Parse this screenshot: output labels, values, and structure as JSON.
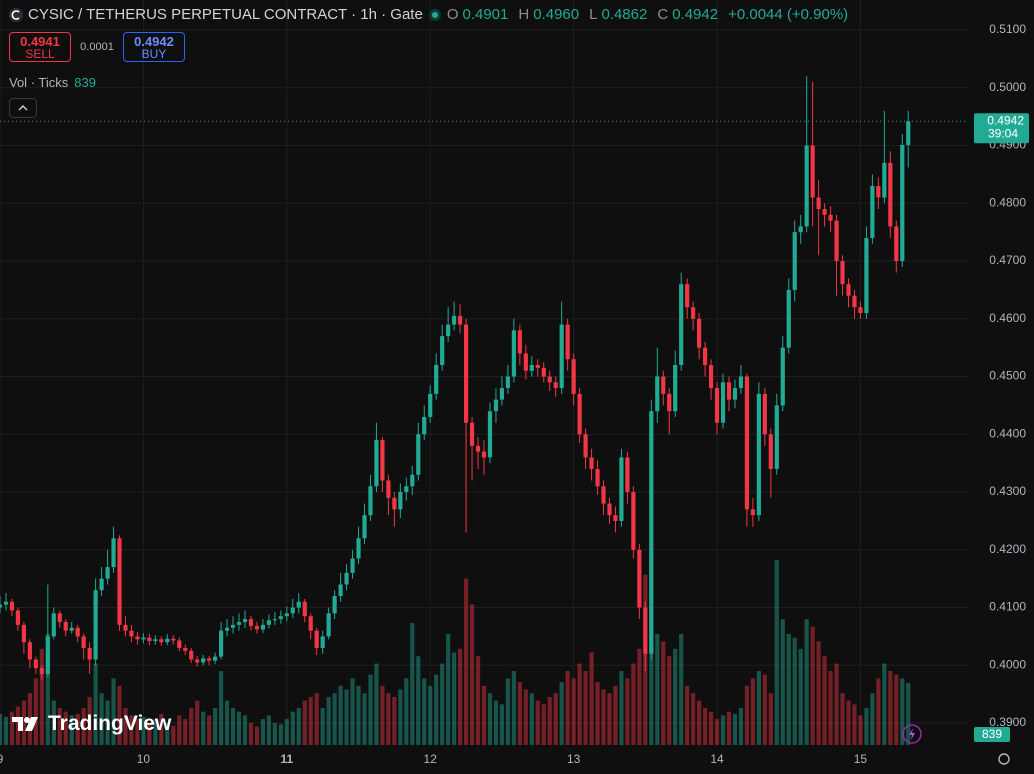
{
  "header": {
    "symbol": "CYSIC / TETHERUS PERPETUAL CONTRACT · 1h · Gate",
    "o_label": "O",
    "o": "0.4901",
    "h_label": "H",
    "h": "0.4960",
    "l_label": "L",
    "l": "0.4862",
    "c_label": "C",
    "c": "0.4942",
    "change": "+0.0044 (+0.90%)"
  },
  "trade": {
    "sell_price": "0.4941",
    "sell_label": "SELL",
    "spread": "0.0001",
    "buy_price": "0.4942",
    "buy_label": "BUY"
  },
  "volume_legend": {
    "label": "Vol · Ticks",
    "value": "839"
  },
  "price_tag": {
    "price": "0.4942",
    "countdown": "39:04"
  },
  "branding": "TradingView",
  "chart_data": {
    "type": "candlestick",
    "up_color": "#22ab94",
    "down_color": "#f23645",
    "grid": true,
    "xlim": [
      0,
      162
    ],
    "ylim": [
      0.3862,
      0.5152
    ],
    "xticks": [
      {
        "value": 0,
        "label": "9"
      },
      {
        "value": 24,
        "label": "10"
      },
      {
        "value": 48,
        "label": "11"
      },
      {
        "value": 72,
        "label": "12"
      },
      {
        "value": 96,
        "label": "13"
      },
      {
        "value": 120,
        "label": "14"
      },
      {
        "value": 144,
        "label": "15"
      }
    ],
    "yticks": [
      {
        "value": 0.39,
        "label": "0.3900"
      },
      {
        "value": 0.4,
        "label": "0.4000"
      },
      {
        "value": 0.41,
        "label": "0.4100"
      },
      {
        "value": 0.42,
        "label": "0.4200"
      },
      {
        "value": 0.43,
        "label": "0.4300"
      },
      {
        "value": 0.44,
        "label": "0.4400"
      },
      {
        "value": 0.45,
        "label": "0.4500"
      },
      {
        "value": 0.46,
        "label": "0.4600"
      },
      {
        "value": 0.47,
        "label": "0.4700"
      },
      {
        "value": 0.48,
        "label": "0.4800"
      },
      {
        "value": 0.49,
        "label": "0.4900"
      },
      {
        "value": 0.5,
        "label": "0.5000"
      },
      {
        "value": 0.51,
        "label": "0.5100"
      }
    ],
    "x": [
      0,
      1,
      2,
      3,
      4,
      5,
      6,
      7,
      8,
      9,
      10,
      11,
      12,
      13,
      14,
      15,
      16,
      17,
      18,
      19,
      20,
      21,
      22,
      23,
      24,
      25,
      26,
      27,
      28,
      29,
      30,
      31,
      32,
      33,
      34,
      35,
      36,
      37,
      38,
      39,
      40,
      41,
      42,
      43,
      44,
      45,
      46,
      47,
      48,
      49,
      50,
      51,
      52,
      53,
      54,
      55,
      56,
      57,
      58,
      59,
      60,
      61,
      62,
      63,
      64,
      65,
      66,
      67,
      68,
      69,
      70,
      71,
      72,
      73,
      74,
      75,
      76,
      77,
      78,
      79,
      80,
      81,
      82,
      83,
      84,
      85,
      86,
      87,
      88,
      89,
      90,
      91,
      92,
      93,
      94,
      95,
      96,
      97,
      98,
      99,
      100,
      101,
      102,
      103,
      104,
      105,
      106,
      107,
      108,
      109,
      110,
      111,
      112,
      113,
      114,
      115,
      116,
      117,
      118,
      119,
      120,
      121,
      122,
      123,
      124,
      125,
      126,
      127,
      128,
      129,
      130,
      131,
      132,
      133,
      134,
      135,
      136,
      137,
      138,
      139,
      140,
      141,
      142,
      143,
      144,
      145,
      146,
      147,
      148,
      149,
      150,
      151,
      152
    ],
    "open": [
      0.41,
      0.4105,
      0.411,
      0.4095,
      0.407,
      0.404,
      0.401,
      0.3995,
      0.3985,
      0.405,
      0.409,
      0.4075,
      0.406,
      0.4065,
      0.405,
      0.403,
      0.401,
      0.413,
      0.415,
      0.417,
      0.422,
      0.407,
      0.406,
      0.405,
      0.4045,
      0.4048,
      0.4042,
      0.4045,
      0.404,
      0.4046,
      0.4043,
      0.403,
      0.4025,
      0.401,
      0.4005,
      0.4012,
      0.4008,
      0.4015,
      0.406,
      0.4065,
      0.407,
      0.4075,
      0.408,
      0.4068,
      0.4062,
      0.407,
      0.4078,
      0.408,
      0.4085,
      0.409,
      0.41,
      0.411,
      0.4085,
      0.406,
      0.403,
      0.405,
      0.409,
      0.412,
      0.414,
      0.416,
      0.4185,
      0.422,
      0.426,
      0.431,
      0.439,
      0.432,
      0.429,
      0.427,
      0.43,
      0.431,
      0.433,
      0.44,
      0.443,
      0.447,
      0.452,
      0.457,
      0.459,
      0.4605,
      0.459,
      0.442,
      0.438,
      0.437,
      0.436,
      0.444,
      0.446,
      0.448,
      0.45,
      0.458,
      0.454,
      0.451,
      0.452,
      0.4515,
      0.45,
      0.449,
      0.448,
      0.459,
      0.453,
      0.447,
      0.44,
      0.436,
      0.434,
      0.431,
      0.428,
      0.426,
      0.425,
      0.436,
      0.43,
      0.42,
      0.41,
      0.402,
      0.444,
      0.45,
      0.447,
      0.444,
      0.452,
      0.466,
      0.462,
      0.46,
      0.455,
      0.452,
      0.448,
      0.442,
      0.449,
      0.446,
      0.448,
      0.45,
      0.427,
      0.426,
      0.447,
      0.44,
      0.434,
      0.445,
      0.455,
      0.465,
      0.475,
      0.476,
      0.49,
      0.481,
      0.479,
      0.478,
      0.477,
      0.47,
      0.466,
      0.464,
      0.462,
      0.461,
      0.474,
      0.483,
      0.481,
      0.487,
      0.476,
      0.47,
      0.4901
    ],
    "high": [
      0.412,
      0.4125,
      0.4115,
      0.41,
      0.4075,
      0.4045,
      0.4015,
      0.4,
      0.414,
      0.41,
      0.4095,
      0.408,
      0.4075,
      0.407,
      0.4055,
      0.404,
      0.415,
      0.417,
      0.42,
      0.424,
      0.4225,
      0.4085,
      0.407,
      0.4058,
      0.4056,
      0.4055,
      0.4052,
      0.405,
      0.4054,
      0.4052,
      0.4048,
      0.4036,
      0.403,
      0.4016,
      0.4018,
      0.4016,
      0.4022,
      0.4075,
      0.408,
      0.4085,
      0.409,
      0.4095,
      0.4086,
      0.4075,
      0.408,
      0.4088,
      0.4092,
      0.4095,
      0.4102,
      0.4115,
      0.4125,
      0.4115,
      0.409,
      0.4065,
      0.406,
      0.41,
      0.413,
      0.416,
      0.4175,
      0.42,
      0.424,
      0.428,
      0.433,
      0.442,
      0.4395,
      0.433,
      0.43,
      0.4315,
      0.4325,
      0.4345,
      0.442,
      0.445,
      0.4485,
      0.454,
      0.459,
      0.462,
      0.463,
      0.4625,
      0.46,
      0.443,
      0.4395,
      0.439,
      0.4455,
      0.448,
      0.45,
      0.452,
      0.46,
      0.459,
      0.4555,
      0.4535,
      0.453,
      0.4525,
      0.451,
      0.45,
      0.463,
      0.46,
      0.454,
      0.448,
      0.441,
      0.4375,
      0.4355,
      0.432,
      0.429,
      0.4275,
      0.4375,
      0.437,
      0.431,
      0.421,
      0.411,
      0.446,
      0.455,
      0.451,
      0.448,
      0.4545,
      0.468,
      0.467,
      0.463,
      0.461,
      0.456,
      0.453,
      0.449,
      0.4505,
      0.45,
      0.4495,
      0.452,
      0.4505,
      0.429,
      0.449,
      0.448,
      0.441,
      0.447,
      0.457,
      0.467,
      0.477,
      0.478,
      0.502,
      0.501,
      0.484,
      0.48,
      0.4795,
      0.478,
      0.471,
      0.467,
      0.465,
      0.463,
      0.476,
      0.485,
      0.4845,
      0.496,
      0.489,
      0.477,
      0.492,
      0.496
    ],
    "low": [
      0.409,
      0.4095,
      0.4085,
      0.406,
      0.402,
      0.3995,
      0.3985,
      0.3975,
      0.398,
      0.4045,
      0.4065,
      0.405,
      0.4055,
      0.404,
      0.401,
      0.3985,
      0.4,
      0.412,
      0.414,
      0.416,
      0.406,
      0.405,
      0.404,
      0.4036,
      0.4038,
      0.4035,
      0.4036,
      0.4034,
      0.4035,
      0.4036,
      0.4024,
      0.4018,
      0.4004,
      0.3998,
      0.4,
      0.4,
      0.4002,
      0.401,
      0.405,
      0.4055,
      0.406,
      0.4065,
      0.406,
      0.4055,
      0.4056,
      0.4064,
      0.407,
      0.4072,
      0.4076,
      0.4082,
      0.409,
      0.4075,
      0.4045,
      0.4018,
      0.402,
      0.4045,
      0.408,
      0.411,
      0.413,
      0.415,
      0.4175,
      0.421,
      0.425,
      0.43,
      0.43,
      0.426,
      0.424,
      0.4255,
      0.4285,
      0.4295,
      0.432,
      0.439,
      0.442,
      0.446,
      0.451,
      0.456,
      0.458,
      0.4575,
      0.423,
      0.432,
      0.434,
      0.433,
      0.435,
      0.442,
      0.445,
      0.447,
      0.449,
      0.452,
      0.4495,
      0.45,
      0.45,
      0.449,
      0.4475,
      0.4465,
      0.447,
      0.451,
      0.445,
      0.4385,
      0.434,
      0.432,
      0.4295,
      0.426,
      0.4245,
      0.423,
      0.424,
      0.428,
      0.4185,
      0.408,
      0.399,
      0.401,
      0.442,
      0.445,
      0.44,
      0.443,
      0.451,
      0.46,
      0.458,
      0.453,
      0.45,
      0.446,
      0.44,
      0.441,
      0.444,
      0.4445,
      0.447,
      0.424,
      0.424,
      0.425,
      0.438,
      0.429,
      0.433,
      0.444,
      0.454,
      0.463,
      0.473,
      0.475,
      0.476,
      0.471,
      0.476,
      0.475,
      0.464,
      0.464,
      0.462,
      0.46,
      0.46,
      0.46,
      0.473,
      0.479,
      0.48,
      0.474,
      0.468,
      0.469,
      0.4862
    ],
    "close": [
      0.4105,
      0.411,
      0.4095,
      0.407,
      0.404,
      0.401,
      0.3995,
      0.3985,
      0.405,
      0.409,
      0.4075,
      0.406,
      0.4065,
      0.405,
      0.403,
      0.401,
      0.413,
      0.415,
      0.417,
      0.422,
      0.407,
      0.406,
      0.405,
      0.4045,
      0.4048,
      0.4042,
      0.4045,
      0.404,
      0.4046,
      0.4043,
      0.403,
      0.4025,
      0.401,
      0.4005,
      0.4012,
      0.4008,
      0.4015,
      0.406,
      0.4065,
      0.407,
      0.4075,
      0.408,
      0.4068,
      0.4062,
      0.407,
      0.4078,
      0.408,
      0.4085,
      0.409,
      0.41,
      0.411,
      0.4085,
      0.406,
      0.403,
      0.405,
      0.409,
      0.412,
      0.414,
      0.416,
      0.4185,
      0.422,
      0.426,
      0.431,
      0.439,
      0.432,
      0.429,
      0.427,
      0.43,
      0.431,
      0.433,
      0.44,
      0.443,
      0.447,
      0.452,
      0.457,
      0.459,
      0.4605,
      0.459,
      0.442,
      0.438,
      0.437,
      0.436,
      0.444,
      0.446,
      0.448,
      0.45,
      0.458,
      0.454,
      0.451,
      0.452,
      0.4515,
      0.45,
      0.449,
      0.448,
      0.459,
      0.453,
      0.447,
      0.44,
      0.436,
      0.434,
      0.431,
      0.428,
      0.426,
      0.425,
      0.436,
      0.43,
      0.42,
      0.41,
      0.402,
      0.444,
      0.45,
      0.447,
      0.444,
      0.452,
      0.466,
      0.462,
      0.46,
      0.455,
      0.452,
      0.448,
      0.442,
      0.449,
      0.446,
      0.448,
      0.45,
      0.427,
      0.426,
      0.447,
      0.44,
      0.434,
      0.445,
      0.455,
      0.465,
      0.475,
      0.476,
      0.49,
      0.481,
      0.479,
      0.478,
      0.477,
      0.47,
      0.466,
      0.464,
      0.462,
      0.461,
      0.474,
      0.483,
      0.481,
      0.487,
      0.476,
      0.47,
      0.4901,
      0.4942
    ],
    "volume": [
      420,
      380,
      450,
      520,
      600,
      700,
      900,
      1300,
      1500,
      600,
      500,
      450,
      400,
      420,
      500,
      650,
      1100,
      700,
      600,
      900,
      800,
      500,
      400,
      350,
      380,
      300,
      350,
      420,
      300,
      260,
      400,
      350,
      500,
      600,
      450,
      400,
      500,
      1000,
      600,
      500,
      450,
      400,
      300,
      250,
      350,
      400,
      300,
      280,
      350,
      450,
      500,
      600,
      650,
      700,
      500,
      650,
      700,
      800,
      750,
      900,
      800,
      700,
      950,
      1100,
      800,
      700,
      650,
      750,
      900,
      1650,
      1200,
      900,
      800,
      950,
      1100,
      1500,
      1250,
      1300,
      2250,
      1900,
      1200,
      800,
      700,
      600,
      550,
      900,
      1000,
      850,
      750,
      700,
      600,
      550,
      650,
      700,
      850,
      1000,
      900,
      1100,
      1000,
      1250,
      850,
      750,
      700,
      800,
      1000,
      900,
      1100,
      1300,
      2300,
      2550,
      1500,
      1400,
      1200,
      1300,
      1500,
      800,
      700,
      600,
      500,
      450,
      350,
      400,
      450,
      420,
      500,
      800,
      900,
      1000,
      950,
      700,
      2500,
      1700,
      1500,
      1450,
      1300,
      1700,
      1600,
      1400,
      1200,
      1000,
      1100,
      700,
      600,
      550,
      400,
      500,
      700,
      900,
      1100,
      1000,
      950,
      900,
      839
    ]
  }
}
